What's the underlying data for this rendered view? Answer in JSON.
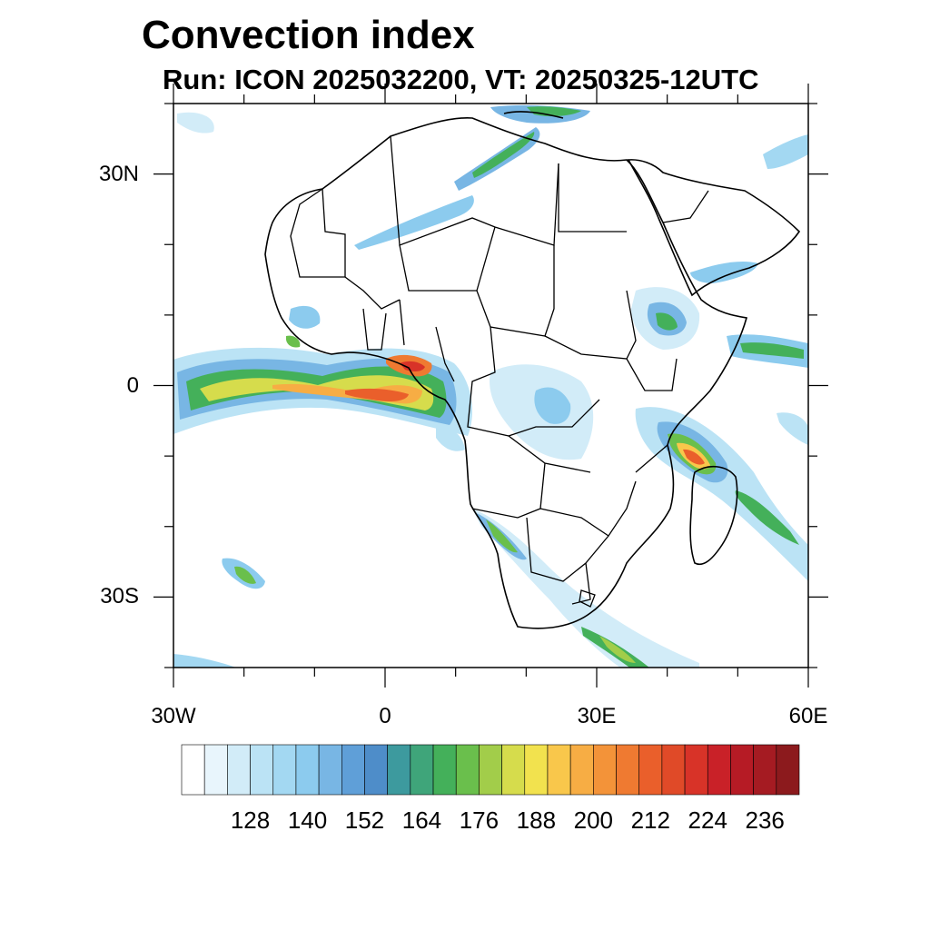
{
  "title": "Convection index",
  "subtitle": "Run: ICON 2025032200,  VT: 20250325-12UTC",
  "axes": {
    "lat_ticks": [
      {
        "value": 30,
        "label": "30N"
      },
      {
        "value": 0,
        "label": "0"
      },
      {
        "value": -30,
        "label": "30S"
      }
    ],
    "lon_ticks": [
      {
        "value": -30,
        "label": "30W"
      },
      {
        "value": 0,
        "label": "0"
      },
      {
        "value": 30,
        "label": "30E"
      },
      {
        "value": 60,
        "label": "60E"
      }
    ],
    "lon_range": [
      -30,
      60
    ],
    "lat_range": [
      -40,
      40
    ]
  },
  "colorbar": {
    "labels": [
      "128",
      "140",
      "152",
      "164",
      "176",
      "188",
      "200",
      "212",
      "224",
      "236"
    ],
    "colors": [
      "#ffffff",
      "#e8f5fc",
      "#d2ecf8",
      "#bbe3f5",
      "#a3d8f2",
      "#8ccbee",
      "#78b6e4",
      "#5f9fd8",
      "#4e8dc9",
      "#3d9a9e",
      "#3fa57a",
      "#44b05a",
      "#6abf4c",
      "#a2cd4a",
      "#d6dc4c",
      "#f2e24e",
      "#f9c74b",
      "#f7ad44",
      "#f39339",
      "#ef7a31",
      "#ea5f2b",
      "#e04a28",
      "#d83328",
      "#c92128",
      "#b61b25",
      "#a51b22",
      "#8c1a1d"
    ]
  }
}
